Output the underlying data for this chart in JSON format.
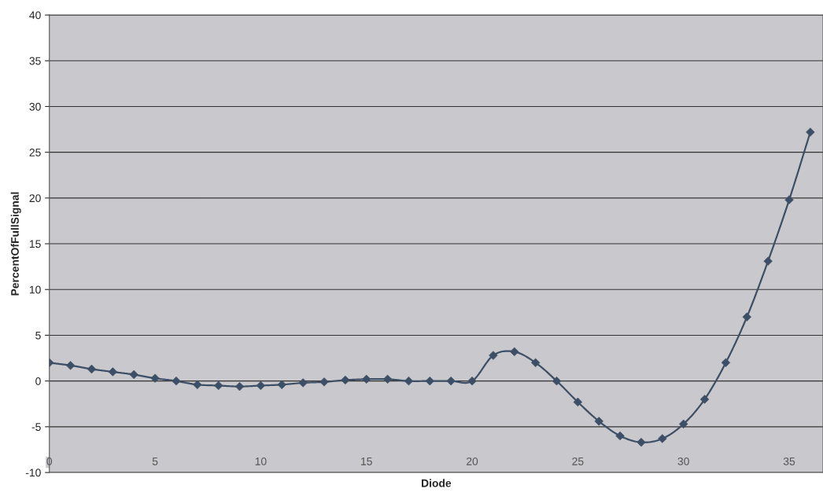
{
  "chart_data": {
    "type": "line",
    "xlabel": "Diode",
    "ylabel": "PercentOfFullSignal",
    "x": [
      0,
      1,
      2,
      3,
      4,
      5,
      6,
      7,
      8,
      9,
      10,
      11,
      12,
      13,
      14,
      15,
      16,
      17,
      18,
      19,
      20,
      21,
      22,
      23,
      24,
      25,
      26,
      27,
      28,
      29,
      30,
      31,
      32,
      33,
      34,
      35,
      36
    ],
    "series": [
      {
        "color": "#3d4f66",
        "values": [
          2.0,
          1.7,
          1.3,
          1.0,
          0.7,
          0.3,
          0.0,
          -0.4,
          -0.5,
          -0.6,
          -0.5,
          -0.4,
          -0.2,
          -0.1,
          0.1,
          0.2,
          0.2,
          0.0,
          0.0,
          0.0,
          0.0,
          2.8,
          3.2,
          2.0,
          0.0,
          -2.3,
          -4.4,
          -6.0,
          -6.7,
          -6.3,
          -4.7,
          -2.0,
          2.0,
          7.0,
          13.1,
          19.8,
          27.2
        ]
      }
    ],
    "xlim": [
      0,
      36.6
    ],
    "xticks": [
      0,
      5,
      10,
      15,
      20,
      25,
      30,
      35
    ],
    "ylim": [
      -10,
      40
    ],
    "yticks": [
      -10,
      -5,
      0,
      5,
      10,
      15,
      20,
      25,
      30,
      35,
      40
    ],
    "grid": "y",
    "marker": "diamond",
    "line_style": "solid",
    "legend": false
  }
}
